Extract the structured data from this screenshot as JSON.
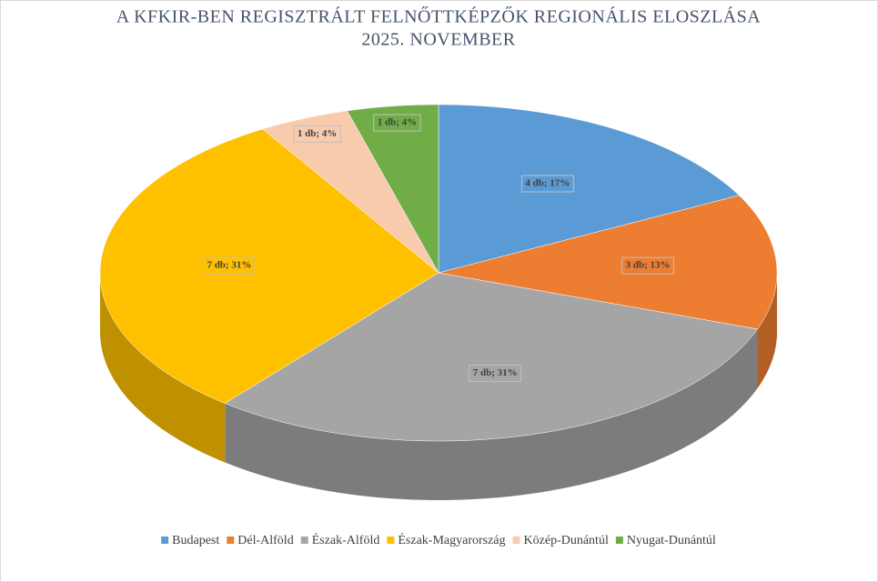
{
  "chart_data": {
    "type": "pie3d",
    "title": "A KFKIR-BEN REGISZTRÁLT FELNŐTTKÉPZŐK REGIONÁLIS ELOSZLÁSA",
    "subtitle": "2025. NOVEMBER",
    "categories": [
      "Budapest",
      "Dél-Alföld",
      "Észak-Alföld",
      "Észak-Magyarország",
      "Közép-Dunántúl",
      "Nyugat-Dunántúl"
    ],
    "values": [
      4,
      3,
      7,
      7,
      1,
      1
    ],
    "value_labels": [
      "4 db; 17%",
      "3 db; 13%",
      "7 db; 31%",
      "7 db; 31%",
      "1 db; 4%",
      "1 db; 4%"
    ],
    "colors": [
      "#5b9bd5",
      "#ed7d31",
      "#a5a5a5",
      "#ffc000",
      "#f8cbad",
      "#70ad47"
    ],
    "legend": "bottom"
  }
}
